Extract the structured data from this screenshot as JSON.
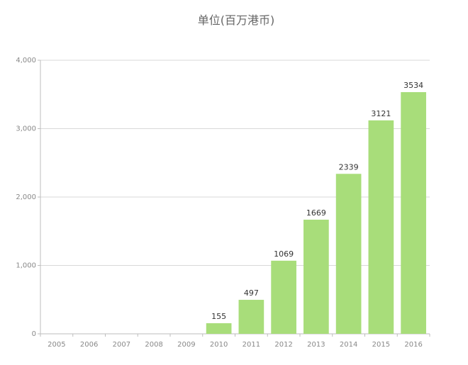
{
  "chart_data": {
    "type": "bar",
    "title": "单位(百万港币)",
    "categories": [
      "2005",
      "2006",
      "2007",
      "2008",
      "2009",
      "2010",
      "2011",
      "2012",
      "2013",
      "2014",
      "2015",
      "2016"
    ],
    "values": [
      0,
      0,
      0,
      0,
      0,
      155,
      497,
      1069,
      1669,
      2339,
      3121,
      3534
    ],
    "data_labels": [
      "",
      "",
      "",
      "",
      "",
      "155",
      "497",
      "1069",
      "1669",
      "2339",
      "3121",
      "3534"
    ],
    "ylim": [
      0,
      4000
    ],
    "y_ticks": [
      0,
      1000,
      2000,
      3000,
      4000
    ],
    "y_tick_labels": [
      "0",
      "1,000",
      "2,000",
      "3,000",
      "4,000"
    ],
    "grid": true,
    "bar_color": "#a8dd7a",
    "xlabel": "",
    "ylabel": ""
  }
}
